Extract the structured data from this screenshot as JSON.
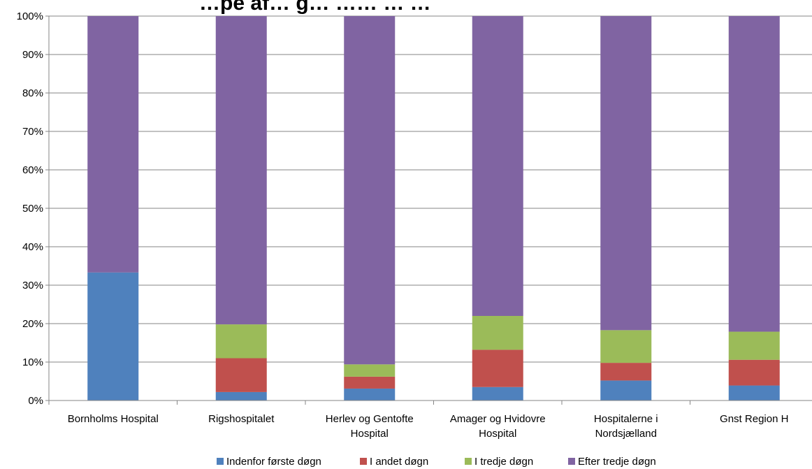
{
  "chart_data": {
    "type": "bar",
    "stacked": true,
    "title": "…pe af… g… …… … …",
    "categories": [
      [
        "Bornholms Hospital"
      ],
      [
        "Rigshospitalet"
      ],
      [
        "Herlev og Gentofte",
        "Hospital"
      ],
      [
        "Amager og Hvidovre",
        "Hospital"
      ],
      [
        "Hospitalerne i",
        "Nordsjælland"
      ],
      [
        "Gnst Region H"
      ]
    ],
    "ylim": [
      0,
      100
    ],
    "yticks": [
      "0%",
      "10%",
      "20%",
      "30%",
      "40%",
      "50%",
      "60%",
      "70%",
      "80%",
      "90%",
      "100%"
    ],
    "grid": true,
    "legend_position": "bottom",
    "series": [
      {
        "name": "Indenfor første døgn",
        "color": "#4f81bd",
        "values": [
          33.3,
          2.2,
          3.1,
          3.5,
          5.2,
          3.9
        ]
      },
      {
        "name": "I andet døgn",
        "color": "#c0504d",
        "values": [
          0,
          8.8,
          3.1,
          9.7,
          4.6,
          6.7
        ]
      },
      {
        "name": "I tredje døgn",
        "color": "#9bbb59",
        "values": [
          0,
          8.8,
          3.2,
          8.8,
          8.5,
          7.3
        ]
      },
      {
        "name": "Efter tredje døgn",
        "color": "#8064a2",
        "values": [
          66.7,
          80.2,
          90.6,
          78.0,
          81.7,
          82.1
        ]
      }
    ]
  }
}
